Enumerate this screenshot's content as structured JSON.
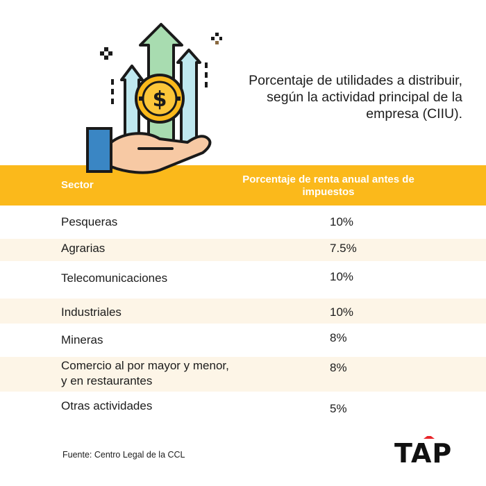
{
  "title": "Porcentaje de utilidades a distribuir, según la actividad principal de la empresa (CIIU).",
  "illustration": {
    "icon": "money-growth-hand-icon",
    "coin_symbol": "$"
  },
  "table": {
    "headers": {
      "sector": "Sector",
      "percentage": "Porcentaje de renta anual antes de impuestos"
    },
    "rows": [
      {
        "sector": "Pesqueras",
        "percentage": "10%"
      },
      {
        "sector": "Agrarias",
        "percentage": "7.5%"
      },
      {
        "sector": "Telecomunicaciones",
        "percentage": "10%"
      },
      {
        "sector": "Industriales",
        "percentage": "10%"
      },
      {
        "sector": "Mineras",
        "percentage": "8%"
      },
      {
        "sector": "Comercio al por mayor y menor, y en restaurantes",
        "percentage": "8%"
      },
      {
        "sector": "Otras actividades",
        "percentage": "5%"
      }
    ]
  },
  "source": "Fuente: Centro Legal de la CCL",
  "brand": {
    "name": "TAP",
    "accent": "#e8252a"
  },
  "colors": {
    "header_band": "#fbb91b",
    "alt_row": "#fdf5e7",
    "text": "#1c1c1c"
  }
}
